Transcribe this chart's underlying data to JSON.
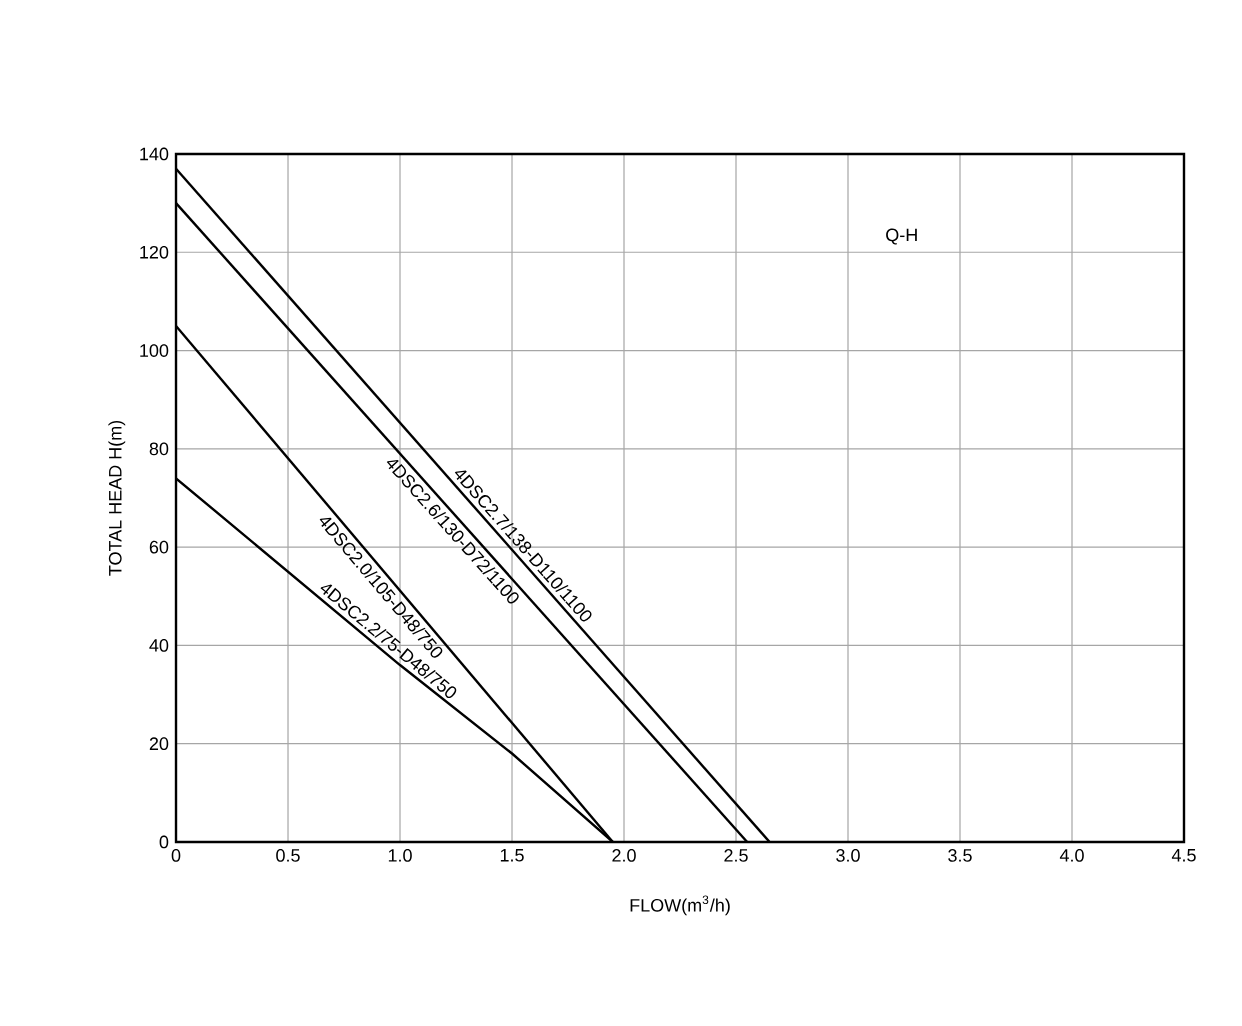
{
  "chart_data": {
    "type": "line",
    "xlabel": "FLOW(m$^{3}$/h)",
    "ylabel": "TOTAL HEAD H(m)",
    "annotations": [
      "Q-H"
    ],
    "series": [
      {
        "name": "4DSC2.7/138-D110/1100",
        "color": "#000000",
        "x": [
          0,
          2.65
        ],
        "values": [
          137,
          0
        ]
      },
      {
        "name": "4DSC2.6/130-D72/1100",
        "color": "#000000",
        "x": [
          0,
          2.55
        ],
        "values": [
          130,
          0
        ]
      },
      {
        "name": "4DSC2.0/105-D48/750",
        "color": "#000000",
        "x": [
          0,
          1.95
        ],
        "values": [
          105,
          0
        ]
      },
      {
        "name": "4DSC2.2/75-D48/750",
        "color": "#000000",
        "x": [
          0,
          1.0,
          1.5,
          1.95
        ],
        "values": [
          74,
          36,
          18,
          0
        ]
      }
    ],
    "xlim": [
      0,
      4.5
    ],
    "ylim": [
      0,
      140
    ],
    "xticks": [
      0,
      0.5,
      {
        "value": 1,
        "label": "1.0"
      },
      1.5,
      {
        "value": 2,
        "label": "2.0"
      },
      2.5,
      {
        "value": 3,
        "label": "3.0"
      },
      3.5,
      {
        "value": 4,
        "label": "4.0"
      },
      4.5
    ],
    "yticks": [
      0,
      20,
      40,
      60,
      80,
      100,
      120,
      140
    ],
    "grid": true,
    "legend": false,
    "marker": "none",
    "line_style": "solid"
  }
}
